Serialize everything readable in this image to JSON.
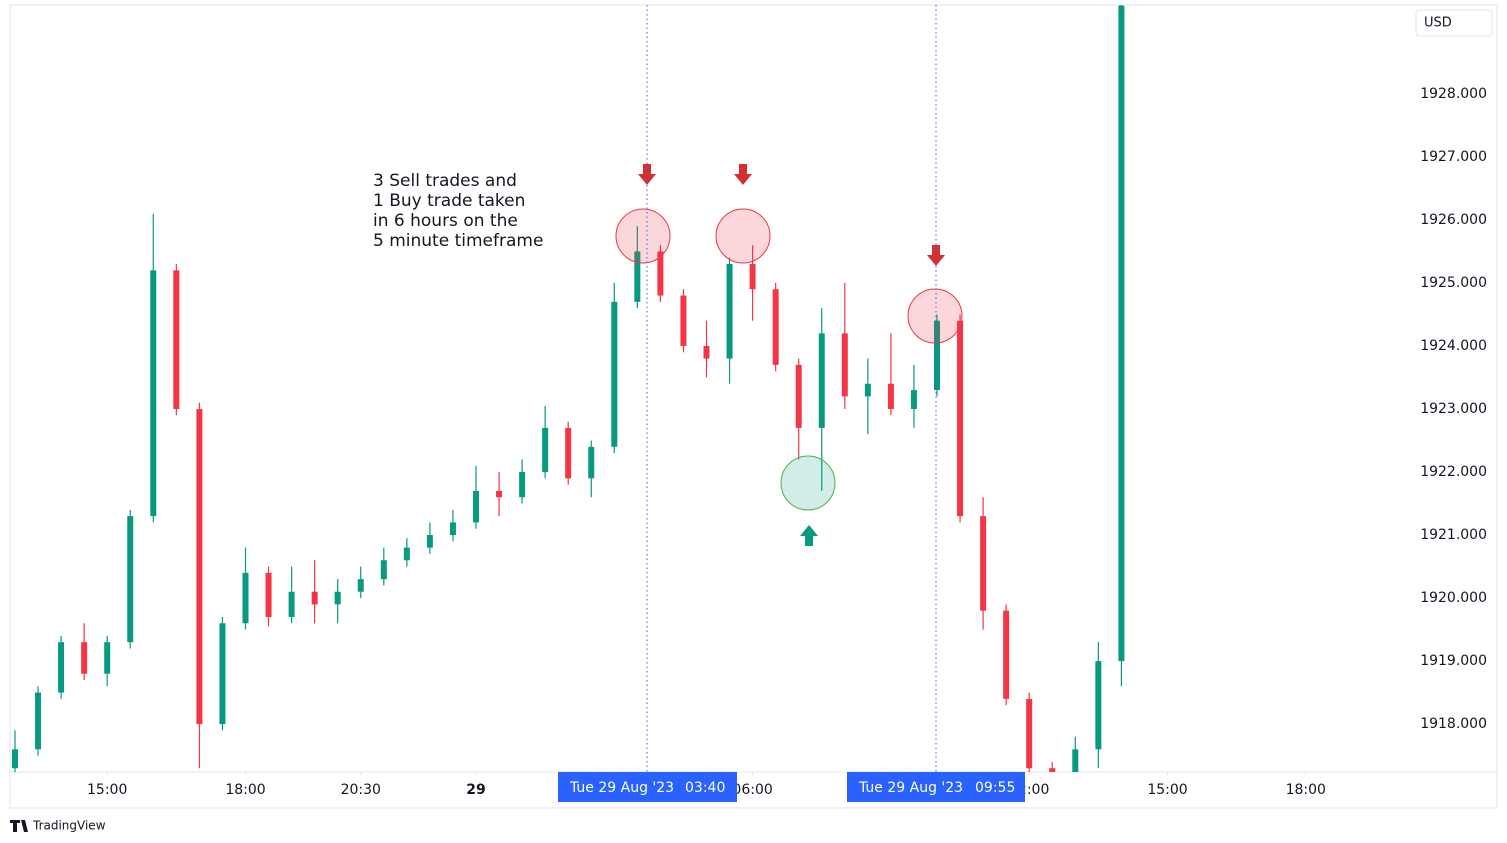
{
  "chart_data": {
    "type": "candlestick",
    "currency": "USD",
    "brand": "TradingView",
    "annotation": [
      "3 Sell trades and",
      "1 Buy trade taken",
      "in 6 hours on the",
      "5 minute timeframe"
    ],
    "markers": [
      {
        "date": "Tue 29 Aug '23",
        "time": "03:40"
      },
      {
        "date": "Tue 29 Aug '23",
        "time": "09:55"
      }
    ],
    "up_color": "#089981",
    "down_color": "#f23645",
    "open": [
      1917.3,
      1917.6,
      1918.5,
      1919.3,
      1918.8,
      1919.3,
      1921.3,
      1925.2,
      1923.0,
      1918.0,
      1919.6,
      1920.4,
      1919.7,
      1920.1,
      1919.9,
      1920.1,
      1920.3,
      1920.6,
      1920.8,
      1921.0,
      1921.2,
      1921.7,
      1921.6,
      1922.0,
      1922.7,
      1921.9,
      1922.4,
      1924.7,
      1925.5,
      1924.8,
      1924.0,
      1923.8,
      1925.3,
      1924.9,
      1923.7,
      1922.7,
      1924.2,
      1923.2,
      1923.4,
      1923.0,
      1923.3,
      1924.4,
      1921.3,
      1919.8,
      1918.4,
      1917.3,
      1917.1,
      1917.6,
      1919.0
    ],
    "high": [
      1917.9,
      1918.6,
      1919.4,
      1919.6,
      1919.4,
      1921.4,
      1926.1,
      1925.3,
      1923.1,
      1919.7,
      1920.8,
      1920.5,
      1920.5,
      1920.6,
      1920.3,
      1920.5,
      1920.8,
      1920.95,
      1921.2,
      1921.4,
      1922.1,
      1922.0,
      1922.2,
      1923.05,
      1922.8,
      1922.5,
      1925.0,
      1925.9,
      1925.6,
      1924.9,
      1924.4,
      1925.4,
      1925.6,
      1925.0,
      1923.8,
      1924.6,
      1925.0,
      1923.8,
      1924.2,
      1923.7,
      1924.5,
      1924.5,
      1921.6,
      1919.9,
      1918.5,
      1917.4,
      1917.8,
      1919.3,
      1929.5
    ],
    "low": [
      1917.2,
      1917.5,
      1918.4,
      1918.7,
      1918.6,
      1919.2,
      1921.2,
      1922.9,
      1917.3,
      1917.9,
      1919.5,
      1919.55,
      1919.6,
      1919.6,
      1919.6,
      1920.0,
      1920.2,
      1920.5,
      1920.7,
      1920.9,
      1921.1,
      1921.3,
      1921.5,
      1921.9,
      1921.8,
      1921.6,
      1922.3,
      1924.6,
      1924.7,
      1923.9,
      1923.5,
      1923.4,
      1924.4,
      1923.6,
      1922.2,
      1921.7,
      1923.0,
      1922.6,
      1922.9,
      1922.7,
      1923.2,
      1921.2,
      1919.5,
      1918.3,
      1917.24,
      1916.9,
      1917.0,
      1917.3,
      1918.6
    ],
    "close": [
      1917.6,
      1918.5,
      1919.3,
      1918.8,
      1919.3,
      1921.3,
      1925.2,
      1923.0,
      1918.0,
      1919.6,
      1920.4,
      1919.7,
      1920.1,
      1919.9,
      1920.1,
      1920.3,
      1920.6,
      1920.8,
      1921.0,
      1921.2,
      1921.7,
      1921.6,
      1922.0,
      1922.7,
      1921.9,
      1922.4,
      1924.7,
      1925.5,
      1924.8,
      1924.0,
      1923.8,
      1925.3,
      1924.9,
      1923.7,
      1922.7,
      1924.2,
      1923.2,
      1923.4,
      1923.0,
      1923.3,
      1924.4,
      1921.3,
      1919.8,
      1918.4,
      1917.3,
      1917.1,
      1917.6,
      1919.0,
      1929.4
    ],
    "ylim": [
      1917.24,
      1929.41
    ],
    "yticks": [
      {
        "value": 1918,
        "label": "1918.000"
      },
      {
        "value": 1919,
        "label": "1919.000"
      },
      {
        "value": 1920,
        "label": "1920.000"
      },
      {
        "value": 1921,
        "label": "1921.000"
      },
      {
        "value": 1922,
        "label": "1922.000"
      },
      {
        "value": 1923,
        "label": "1923.000"
      },
      {
        "value": 1924,
        "label": "1924.000"
      },
      {
        "value": 1925,
        "label": "1925.000"
      },
      {
        "value": 1926,
        "label": "1926.000"
      },
      {
        "value": 1927,
        "label": "1927.000"
      },
      {
        "value": 1928,
        "label": "1928.000"
      }
    ],
    "xticks": [
      {
        "value": 4,
        "label": "15:00"
      },
      {
        "value": 10,
        "label": "18:00"
      },
      {
        "value": 15,
        "label": "20:30"
      },
      {
        "value": 20,
        "label": "29"
      },
      {
        "value": 32,
        "label": "06:00"
      },
      {
        "value": 44,
        "label": "12:00"
      },
      {
        "value": 50,
        "label": "15:00"
      },
      {
        "value": 56,
        "label": "18:00"
      }
    ]
  }
}
